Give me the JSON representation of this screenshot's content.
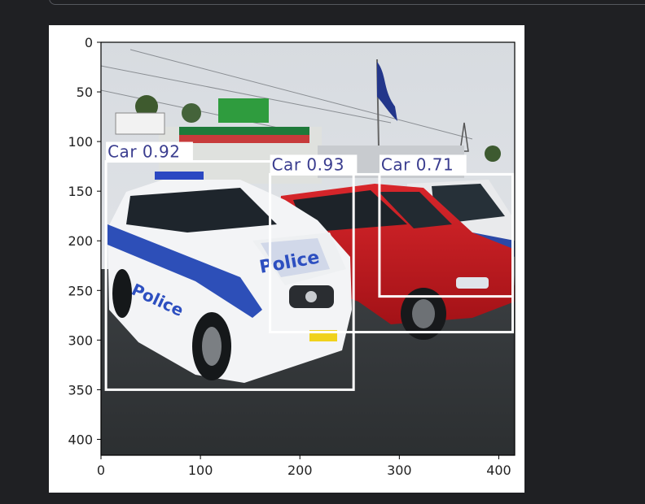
{
  "theme": {
    "background": "#1f2023",
    "figure_bg": "#ffffff",
    "box_color": "#ffffff",
    "label_color": "#3a3d8f"
  },
  "output_cell": {
    "content": "image"
  },
  "chart_data": {
    "type": "image-with-detections",
    "x_ticks": [
      0,
      100,
      200,
      300,
      400
    ],
    "y_ticks": [
      0,
      50,
      100,
      150,
      200,
      250,
      300,
      350,
      400
    ],
    "xlim": [
      0,
      416
    ],
    "ylim": [
      416,
      0
    ],
    "image": {
      "description_words": [
        "Police"
      ]
    },
    "detections": [
      {
        "label": "Car 0.92",
        "x1": 5,
        "y1": 120,
        "x2": 254,
        "y2": 350
      },
      {
        "label": "Car 0.93",
        "x1": 170,
        "y1": 133,
        "x2": 414,
        "y2": 292
      },
      {
        "label": "Car 0.71",
        "x1": 280,
        "y1": 133,
        "x2": 414,
        "y2": 256
      }
    ],
    "title": "",
    "xlabel": "",
    "ylabel": ""
  }
}
